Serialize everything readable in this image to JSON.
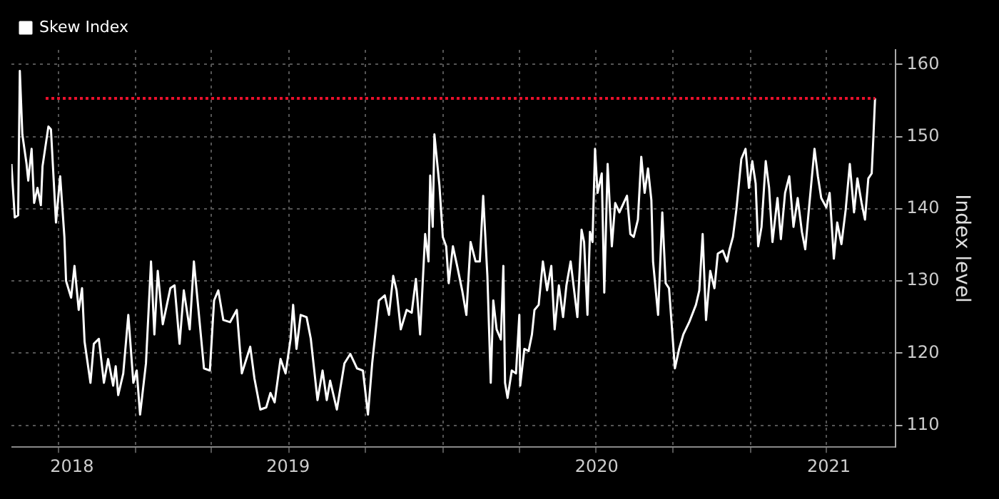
{
  "chart_data": {
    "type": "line",
    "ylabel": "Index level",
    "legend": "top left",
    "grid": true,
    "xlim": [
      "2018-08-06",
      "2021-06-22"
    ],
    "xticks": [
      {
        "value": "2018-10-01",
        "label": null
      },
      {
        "value": "2018-10-17",
        "label": "2018"
      },
      {
        "value": "2019-01-01",
        "label": null
      },
      {
        "value": "2019-04-01",
        "label": null
      },
      {
        "value": "2019-07-01",
        "label": "2019"
      },
      {
        "value": "2019-07-02",
        "label": null
      },
      {
        "value": "2019-10-01",
        "label": null
      },
      {
        "value": "2020-01-01",
        "label": null
      },
      {
        "value": "2020-04-01",
        "label": null
      },
      {
        "value": "2020-07-01",
        "label": null
      },
      {
        "value": "2020-07-02",
        "label": "2020"
      },
      {
        "value": "2020-10-01",
        "label": null
      },
      {
        "value": "2021-01-01",
        "label": null
      },
      {
        "value": "2021-04-01",
        "label": null
      },
      {
        "value": "2021-04-04",
        "label": "2021"
      }
    ],
    "ylim": [
      107,
      162
    ],
    "yticks": [
      110,
      120,
      130,
      140,
      150,
      160
    ],
    "ref_lines": [
      {
        "axis": "y",
        "value": 155.3,
        "color": "#e8112d",
        "line_style": "dotted"
      }
    ],
    "series": [
      {
        "name": "Skew Index",
        "color": "#ffffff",
        "x": [
          "2018-08-06",
          "2018-08-10",
          "2018-08-14",
          "2018-08-16",
          "2018-08-19",
          "2018-08-24",
          "2018-08-26",
          "2018-08-30",
          "2018-09-02",
          "2018-09-06",
          "2018-09-10",
          "2018-09-12",
          "2018-09-19",
          "2018-09-22",
          "2018-09-28",
          "2018-10-03",
          "2018-10-08",
          "2018-10-10",
          "2018-10-16",
          "2018-10-20",
          "2018-10-25",
          "2018-10-29",
          "2018-11-01",
          "2018-11-08",
          "2018-11-12",
          "2018-11-18",
          "2018-11-24",
          "2018-11-29",
          "2018-12-05",
          "2018-12-08",
          "2018-12-11",
          "2018-12-17",
          "2018-12-23",
          "2018-12-29",
          "2019-01-02",
          "2019-01-06",
          "2019-01-13",
          "2019-01-19",
          "2019-01-23",
          "2019-01-27",
          "2019-02-02",
          "2019-02-11",
          "2019-02-16",
          "2019-02-22",
          "2019-02-27",
          "2019-03-06",
          "2019-03-11",
          "2019-03-23",
          "2019-03-30",
          "2019-04-04",
          "2019-04-09",
          "2019-04-15",
          "2019-04-23",
          "2019-05-01",
          "2019-05-07",
          "2019-05-17",
          "2019-05-22",
          "2019-05-29",
          "2019-06-05",
          "2019-06-10",
          "2019-06-15",
          "2019-06-22",
          "2019-06-28",
          "2019-07-04",
          "2019-07-07",
          "2019-07-11",
          "2019-07-16",
          "2019-07-23",
          "2019-07-28",
          "2019-08-05",
          "2019-08-11",
          "2019-08-16",
          "2019-08-20",
          "2019-08-28",
          "2019-09-06",
          "2019-09-13",
          "2019-09-21",
          "2019-09-28",
          "2019-10-04",
          "2019-10-09",
          "2019-10-17",
          "2019-10-24",
          "2019-10-29",
          "2019-11-03",
          "2019-11-07",
          "2019-11-12",
          "2019-11-19",
          "2019-11-25",
          "2019-11-30",
          "2019-12-05",
          "2019-12-11",
          "2019-12-15",
          "2019-12-17",
          "2019-12-20",
          "2019-12-22",
          "2019-12-28",
          "2020-01-01",
          "2020-01-05",
          "2020-01-08",
          "2020-01-13",
          "2020-01-18",
          "2020-01-24",
          "2020-01-29",
          "2020-02-03",
          "2020-02-09",
          "2020-02-14",
          "2020-02-18",
          "2020-02-23",
          "2020-02-27",
          "2020-03-01",
          "2020-03-05",
          "2020-03-10",
          "2020-03-13",
          "2020-03-15",
          "2020-03-18",
          "2020-03-23",
          "2020-03-28",
          "2020-04-01",
          "2020-04-02",
          "2020-04-07",
          "2020-04-12",
          "2020-04-16",
          "2020-04-19",
          "2020-04-24",
          "2020-04-29",
          "2020-05-04",
          "2020-05-09",
          "2020-05-13",
          "2020-05-18",
          "2020-05-23",
          "2020-05-27",
          "2020-06-01",
          "2020-06-09",
          "2020-06-14",
          "2020-06-17",
          "2020-06-21",
          "2020-06-24",
          "2020-06-27",
          "2020-06-30",
          "2020-07-03",
          "2020-07-08",
          "2020-07-11",
          "2020-07-15",
          "2020-07-20",
          "2020-07-24",
          "2020-07-29",
          "2020-08-03",
          "2020-08-07",
          "2020-08-11",
          "2020-08-15",
          "2020-08-20",
          "2020-08-24",
          "2020-08-28",
          "2020-09-01",
          "2020-09-05",
          "2020-09-07",
          "2020-09-13",
          "2020-09-18",
          "2020-09-22",
          "2020-09-26",
          "2020-10-03",
          "2020-10-08",
          "2020-10-13",
          "2020-10-20",
          "2020-10-28",
          "2020-11-01",
          "2020-11-05",
          "2020-11-09",
          "2020-11-14",
          "2020-11-19",
          "2020-11-23",
          "2020-11-29",
          "2020-12-04",
          "2020-12-07",
          "2020-12-11",
          "2020-12-15",
          "2020-12-21",
          "2020-12-26",
          "2020-12-30",
          "2021-01-03",
          "2021-01-07",
          "2021-01-10",
          "2021-01-14",
          "2021-01-19",
          "2021-01-23",
          "2021-01-27",
          "2021-02-02",
          "2021-02-06",
          "2021-02-11",
          "2021-02-16",
          "2021-02-21",
          "2021-02-26",
          "2021-03-03",
          "2021-03-07",
          "2021-03-12",
          "2021-03-18",
          "2021-03-22",
          "2021-03-26",
          "2021-04-01",
          "2021-04-05",
          "2021-04-10",
          "2021-04-14",
          "2021-04-19",
          "2021-04-24",
          "2021-04-29",
          "2021-05-04",
          "2021-05-08",
          "2021-05-13",
          "2021-05-17",
          "2021-05-21",
          "2021-05-25",
          "2021-05-27",
          "2021-05-29"
        ],
        "values": [
          146.2,
          138.8,
          139.1,
          159.1,
          150.3,
          146.2,
          143.9,
          148.3,
          140.8,
          142.9,
          140.5,
          145.9,
          151.4,
          151,
          138.1,
          144.5,
          136.1,
          130,
          127.7,
          132.1,
          126,
          129,
          121.6,
          115.9,
          121.3,
          122,
          115.9,
          119.2,
          115.5,
          118.2,
          114.2,
          117.2,
          125.3,
          115.9,
          117.6,
          111.5,
          118.6,
          132.7,
          122.6,
          131.4,
          124,
          129,
          129.4,
          121.3,
          128.7,
          123.3,
          132.7,
          117.9,
          117.6,
          127.3,
          128.7,
          124.6,
          124.3,
          126,
          117.2,
          120.9,
          116.5,
          112.2,
          112.5,
          114.5,
          113.2,
          119.2,
          117.2,
          122,
          126.7,
          120.6,
          125.3,
          125,
          122,
          113.5,
          117.6,
          113.5,
          116.2,
          112.2,
          118.6,
          119.9,
          117.9,
          117.6,
          111.5,
          118.6,
          127.3,
          128,
          125.3,
          130.7,
          128.7,
          123.3,
          126,
          125.6,
          130.3,
          122.6,
          136.5,
          132.7,
          144.6,
          137.5,
          150.3,
          143.2,
          136.1,
          134.8,
          129.7,
          134.8,
          132.1,
          128.7,
          125.3,
          135.4,
          132.7,
          132.7,
          141.8,
          130.7,
          115.9,
          127.3,
          123.3,
          121.9,
          132.1,
          115.9,
          113.8,
          117.6,
          117.2,
          125.3,
          115.5,
          120.6,
          120.3,
          122.6,
          126,
          126.7,
          132.7,
          128.7,
          132.1,
          123.3,
          129.4,
          125,
          129.4,
          132.7,
          125,
          137.1,
          135.4,
          125.3,
          136.8,
          135.4,
          148.3,
          142.2,
          144.9,
          128.4,
          146.2,
          134.8,
          140.8,
          139.5,
          140.8,
          141.8,
          136.5,
          136.1,
          138.5,
          147.2,
          142.2,
          145.6,
          141.2,
          132.7,
          125.3,
          139.5,
          129.7,
          129,
          117.9,
          120.6,
          122.6,
          124.3,
          126.7,
          128.7,
          136.5,
          124.6,
          131.4,
          129,
          133.8,
          134.2,
          132.7,
          134.4,
          136.1,
          139.8,
          146.9,
          148.3,
          142.9,
          146.6,
          143.5,
          134.8,
          137.5,
          146.6,
          142.9,
          135.4,
          141.5,
          135.8,
          142.2,
          144.5,
          137.5,
          141.5,
          136.8,
          134.4,
          140.8,
          148.3,
          144.5,
          141.5,
          140.2,
          142.2,
          133.1,
          138.1,
          135.1,
          139.8,
          146.2,
          139.5,
          144.2,
          140.8,
          138.5,
          144.2,
          144.9,
          149.9,
          155.3
        ]
      }
    ]
  }
}
